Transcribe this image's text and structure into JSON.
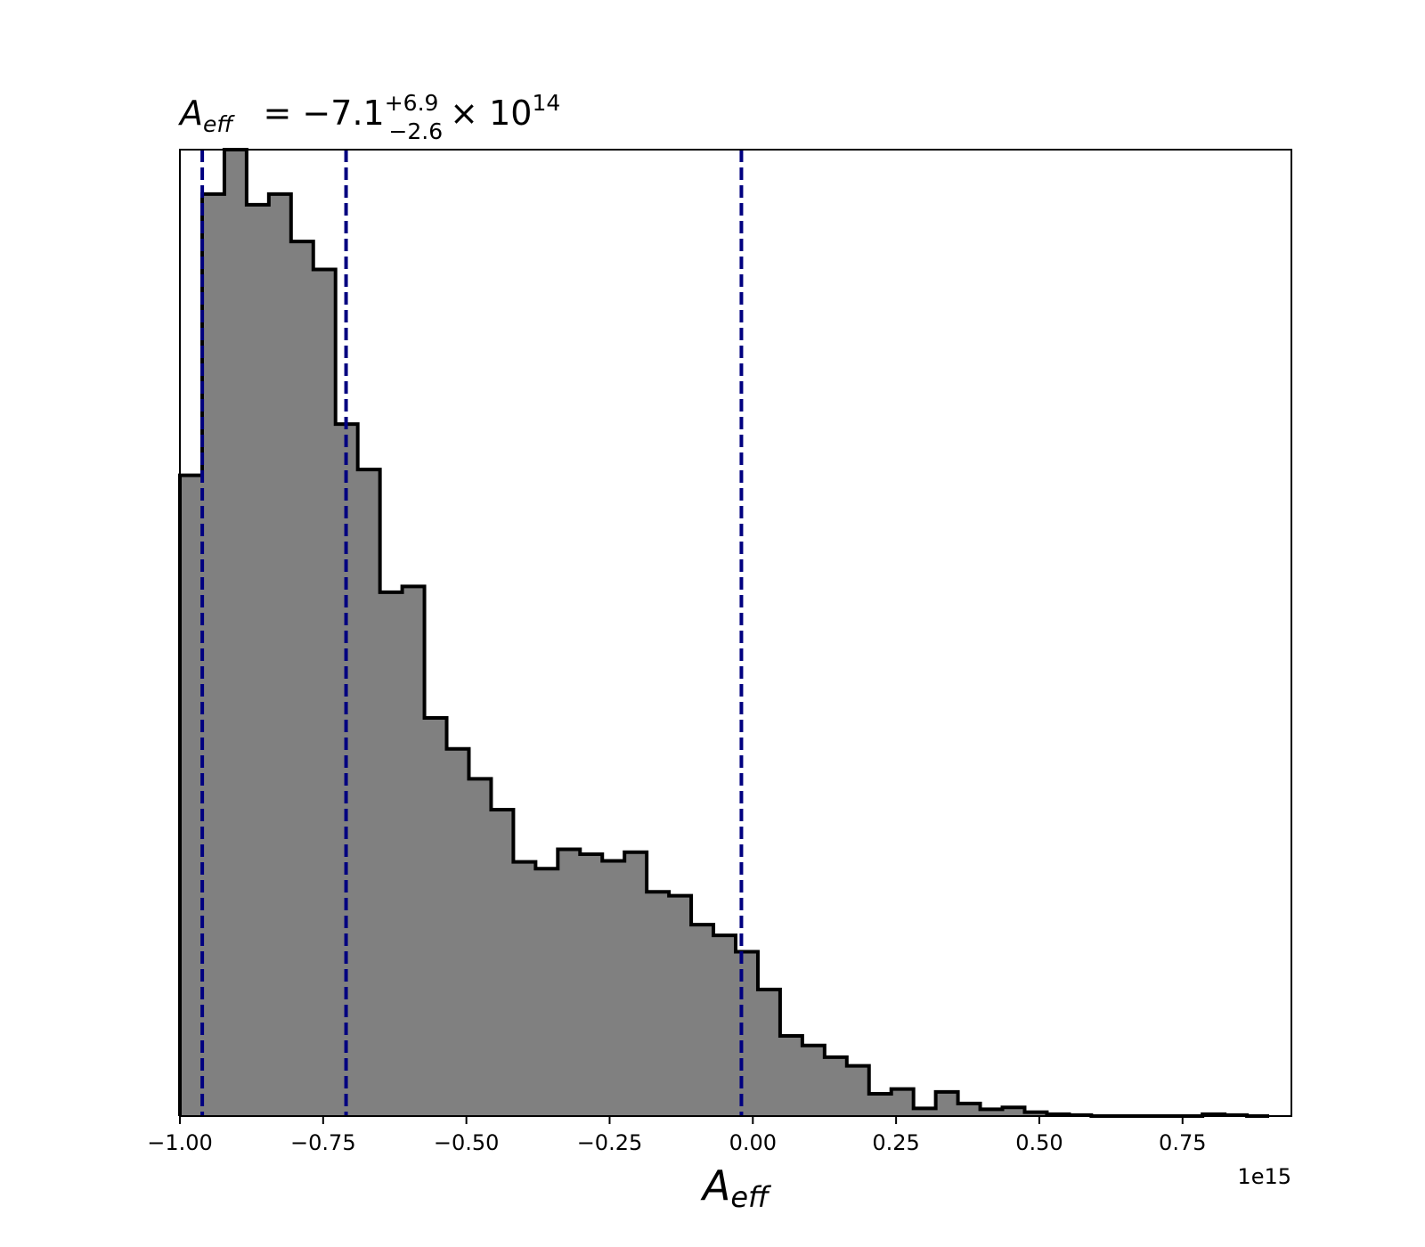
{
  "chart_data": {
    "type": "bar",
    "title": {
      "symbol": "A",
      "symbol_sub": "eff",
      "prefix": " = −7.1",
      "sup": "+6.9",
      "sub": "−2.6",
      "suffix": "× 10",
      "exp": "14"
    },
    "xlabel": {
      "symbol": "A",
      "sub": "eff"
    },
    "ylabel": "",
    "x_offset_label": "1e15",
    "xlim": [
      -1.0,
      0.94
    ],
    "ylim": [
      0,
      1.0
    ],
    "xticks": [
      -1.0,
      -0.75,
      -0.5,
      -0.25,
      0.0,
      0.25,
      0.5,
      0.75
    ],
    "xtick_labels": [
      "−1.00",
      "−0.75",
      "−0.50",
      "−0.25",
      "0.00",
      "0.25",
      "0.50",
      "0.75"
    ],
    "y_ticks_shown": false,
    "grid": false,
    "bin_edges": [
      -1.0,
      -0.9612,
      -0.9224,
      -0.8836,
      -0.8448,
      -0.806,
      -0.7672,
      -0.7284,
      -0.6896,
      -0.6508,
      -0.612,
      -0.5732,
      -0.5344,
      -0.4956,
      -0.4568,
      -0.418,
      -0.3792,
      -0.3404,
      -0.3016,
      -0.2628,
      -0.224,
      -0.1852,
      -0.1464,
      -0.1076,
      -0.0688,
      -0.03,
      0.0088,
      0.0476,
      0.0864,
      0.1252,
      0.164,
      0.2028,
      0.2416,
      0.2804,
      0.3192,
      0.358,
      0.3968,
      0.4356,
      0.4744,
      0.5132,
      0.552,
      0.5908,
      0.6296,
      0.6684,
      0.7072,
      0.746,
      0.7848,
      0.8236,
      0.8624,
      0.9012
    ],
    "counts": [
      0.663,
      0.954,
      1.0,
      0.943,
      0.954,
      0.905,
      0.876,
      0.716,
      0.669,
      0.542,
      0.548,
      0.412,
      0.38,
      0.349,
      0.317,
      0.263,
      0.256,
      0.276,
      0.271,
      0.264,
      0.273,
      0.232,
      0.228,
      0.198,
      0.187,
      0.17,
      0.131,
      0.083,
      0.073,
      0.061,
      0.052,
      0.023,
      0.028,
      0.008,
      0.025,
      0.013,
      0.007,
      0.009,
      0.004,
      0.002,
      0.001,
      0.0,
      0.0,
      0.0,
      0.0,
      0.0,
      0.002,
      0.001,
      0.0
    ],
    "vlines": [
      -0.961,
      -0.71,
      -0.02
    ],
    "colors": {
      "fill": "#808080",
      "edge": "#000000",
      "vline": "#000080",
      "axes": "#000000"
    }
  }
}
